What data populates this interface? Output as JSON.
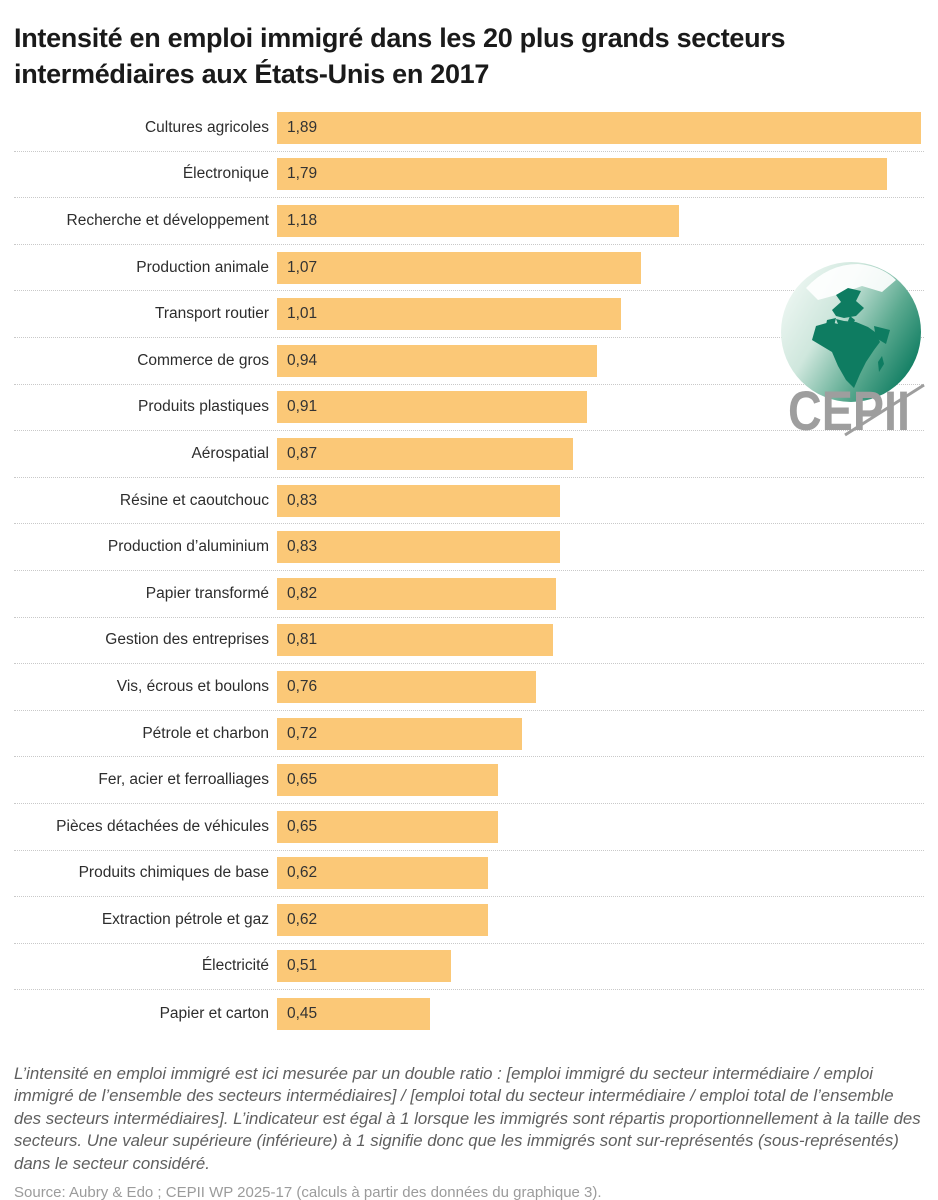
{
  "title": "Intensité en emploi immigré dans les 20 plus grands secteurs intermédiaires aux États-Unis en 2017",
  "logo": {
    "text": "CEPII",
    "globe_color": "#0e7c61",
    "text_color": "#9e9e9e"
  },
  "chart_data": {
    "type": "bar",
    "orientation": "horizontal",
    "title": "Intensité en emploi immigré dans les 20 plus grands secteurs intermédiaires aux États-Unis en 2017",
    "xlabel": "",
    "ylabel": "",
    "xlim": [
      0,
      1.9
    ],
    "grid": "dotted row separators",
    "bar_color": "#FBC877",
    "categories": [
      "Cultures agricoles",
      "Électronique",
      "Recherche et développement",
      "Production animale",
      "Transport routier",
      "Commerce de gros",
      "Produits plastiques",
      "Aérospatial",
      "Résine et caoutchouc",
      "Production d’aluminium",
      "Papier transformé",
      "Gestion des entreprises",
      "Vis, écrous et boulons",
      "Pétrole et charbon",
      "Fer, acier et ferroalliages",
      "Pièces détachées de véhicules",
      "Produits chimiques de base",
      "Extraction pétrole et gaz",
      "Électricité",
      "Papier et carton"
    ],
    "values": [
      1.89,
      1.79,
      1.18,
      1.07,
      1.01,
      0.94,
      0.91,
      0.87,
      0.83,
      0.83,
      0.82,
      0.81,
      0.76,
      0.72,
      0.65,
      0.65,
      0.62,
      0.62,
      0.51,
      0.45
    ],
    "value_labels": [
      "1,89",
      "1,79",
      "1,18",
      "1,07",
      "1,01",
      "0,94",
      "0,91",
      "0,87",
      "0,83",
      "0,83",
      "0,82",
      "0,81",
      "0,76",
      "0,72",
      "0,65",
      "0,65",
      "0,62",
      "0,62",
      "0,51",
      "0,45"
    ]
  },
  "footer": {
    "note": "L’intensité en emploi immigré est ici mesurée par un double ratio : [emploi immigré du secteur intermédiaire / emploi immigré de l’ensemble des secteurs intermédiaires] / [emploi total du secteur intermédiaire / emploi total de l’ensemble des secteurs intermédiaires]. L’indicateur est égal à 1 lorsque les immigrés sont répartis proportionnellement à la taille des secteurs. Une valeur supérieure (inférieure) à 1 signifie donc que les immigrés sont sur-représentés (sous-représentés) dans le secteur considéré.",
    "source": "Source: Aubry & Edo ; CEPII WP 2025-17 (calculs à partir des données du graphique 3)."
  }
}
